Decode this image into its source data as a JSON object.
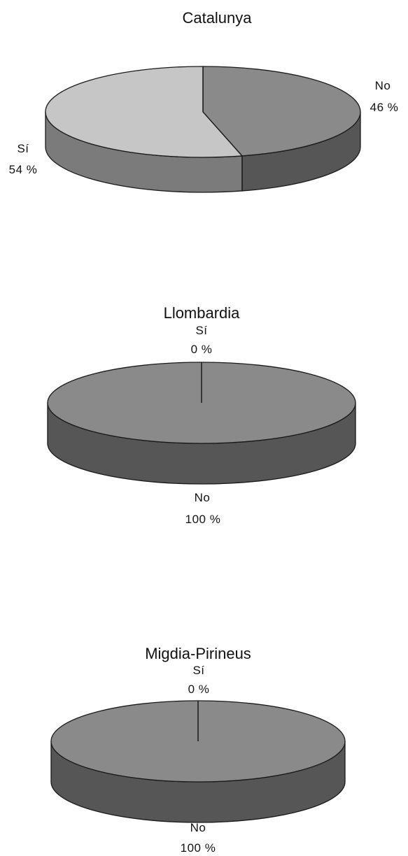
{
  "chart_data": [
    {
      "type": "pie",
      "title": "Catalunya",
      "slices": [
        {
          "label": "No",
          "value": 46,
          "value_label": "46 %",
          "color": "#8a8a8a"
        },
        {
          "label": "Sí",
          "value": 54,
          "value_label": "54 %",
          "color": "#c6c6c6"
        }
      ]
    },
    {
      "type": "pie",
      "title": "Llombardia",
      "slices": [
        {
          "label": "Sí",
          "value": 0,
          "value_label": "0 %",
          "color": "#c6c6c6"
        },
        {
          "label": "No",
          "value": 100,
          "value_label": "100 %",
          "color": "#8a8a8a"
        }
      ]
    },
    {
      "type": "pie",
      "title": "Migdia-Pirineus",
      "slices": [
        {
          "label": "Sí",
          "value": 0,
          "value_label": "0 %",
          "color": "#c6c6c6"
        },
        {
          "label": "No",
          "value": 100,
          "value_label": "100 %",
          "color": "#8a8a8a"
        }
      ]
    }
  ]
}
